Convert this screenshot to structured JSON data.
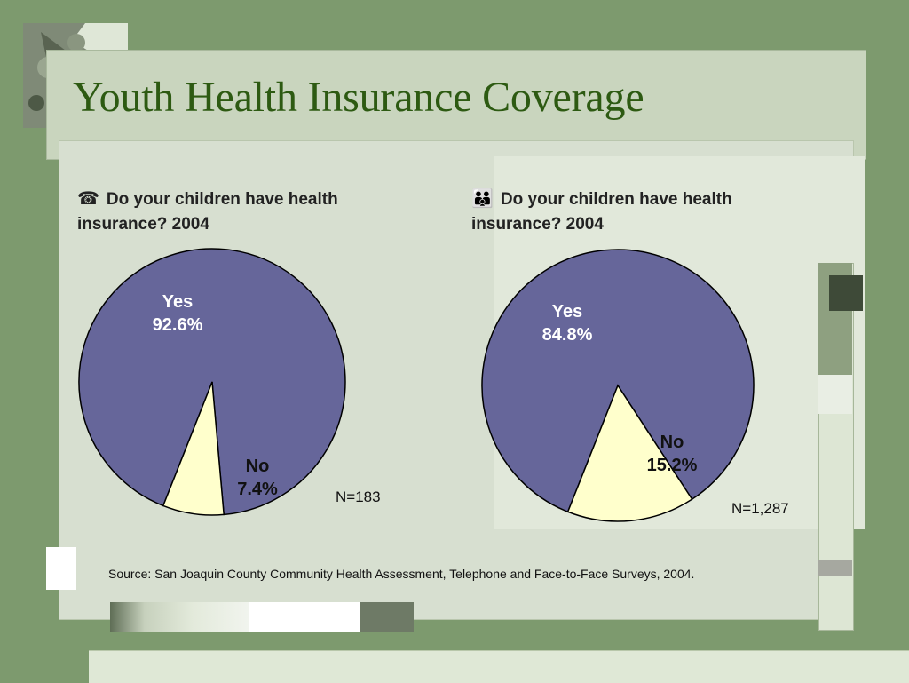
{
  "slide": {
    "title": "Youth Health Insurance Coverage",
    "source_text": "Source: San Joaquin County Community Health Assessment, Telephone and Face-to-Face Surveys, 2004."
  },
  "icons": {
    "left": "telephone-icon",
    "right": "family-icon"
  },
  "chart_data": [
    {
      "type": "pie",
      "title": "Do your children have health insurance? 2004",
      "categories": [
        "Yes",
        "No"
      ],
      "values": [
        92.6,
        7.4
      ],
      "value_labels": [
        "92.6%",
        "7.4%"
      ],
      "colors": [
        "#66669a",
        "#ffffcc"
      ],
      "n_label": "N=183"
    },
    {
      "type": "pie",
      "title": "Do your children have health insurance? 2004",
      "categories": [
        "Yes",
        "No"
      ],
      "values": [
        84.8,
        15.2
      ],
      "value_labels": [
        "84.8%",
        "15.2%"
      ],
      "colors": [
        "#66669a",
        "#ffffcc"
      ],
      "n_label": "N=1,287"
    }
  ]
}
